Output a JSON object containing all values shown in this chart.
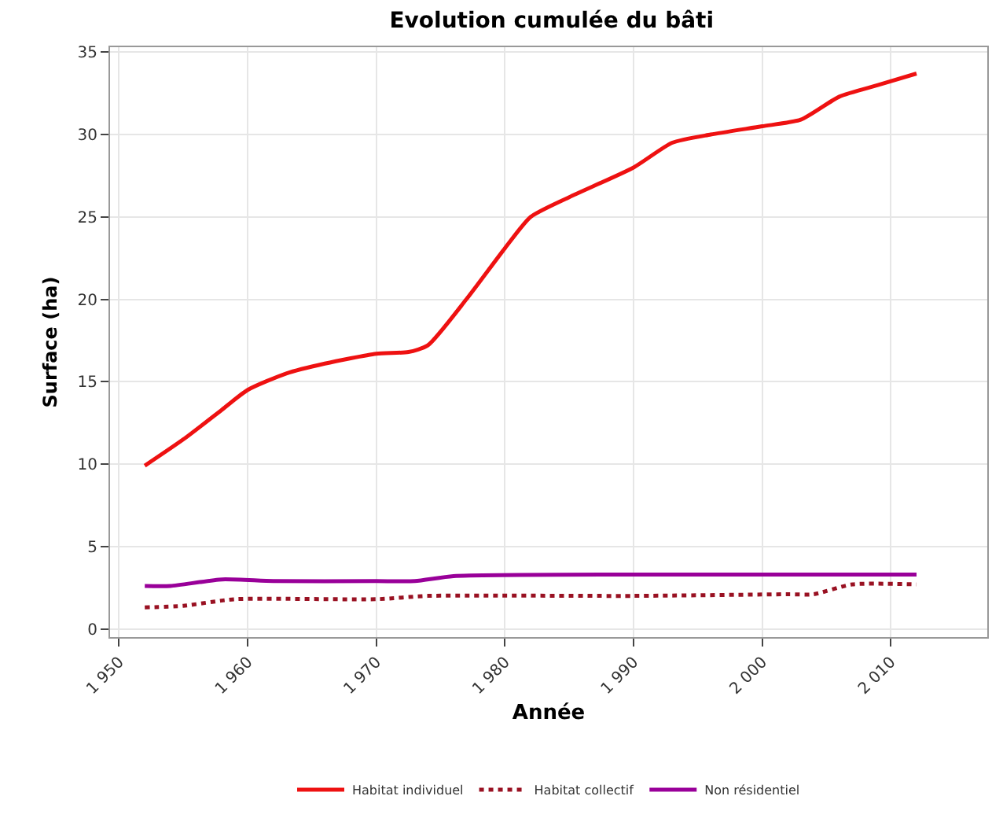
{
  "chart_data": {
    "type": "line",
    "title": "Evolution cumulée du bâti",
    "xlabel": "Année",
    "ylabel": "Surface (ha)",
    "xlim": [
      1949.3,
      2017.5
    ],
    "xticks": [
      {
        "value": 1950,
        "label": "1 950"
      },
      {
        "value": 1960,
        "label": "1 960"
      },
      {
        "value": 1970,
        "label": "1 970"
      },
      {
        "value": 1980,
        "label": "1 980"
      },
      {
        "value": 1990,
        "label": "1 990"
      },
      {
        "value": 2000,
        "label": "2 000"
      },
      {
        "value": 2010,
        "label": "2 010"
      }
    ],
    "ylim": [
      -0.5,
      35.3
    ],
    "yticks": [
      0,
      5,
      10,
      15,
      20,
      25,
      30,
      35
    ],
    "grid": true,
    "legend": "bottom",
    "marker": "none",
    "series": [
      {
        "name": "Habitat individuel",
        "color": "#ee1111",
        "line_style": "solid",
        "x": [
          1952,
          1955,
          1958,
          1960,
          1963,
          1966,
          1970,
          1972.5,
          1974,
          1977,
          1980,
          1982,
          1985,
          1990,
          1993,
          1996,
          2000,
          2003,
          2006,
          2009,
          2012
        ],
        "values": [
          9.9,
          11.5,
          13.3,
          14.5,
          15.5,
          16.1,
          16.7,
          16.8,
          17.2,
          20,
          23.1,
          25,
          26.2,
          28,
          29.5,
          30,
          30.5,
          30.9,
          32.3,
          33,
          33.7
        ]
      },
      {
        "name": "Habitat collectif",
        "color": "#991122",
        "line_style": "dotted",
        "x": [
          1952,
          1955,
          1959,
          1970,
          1974,
          1990,
          2002,
          2004,
          2007,
          2012
        ],
        "values": [
          1.3,
          1.4,
          1.8,
          1.8,
          2,
          2,
          2.1,
          2.1,
          2.7,
          2.7
        ]
      },
      {
        "name": "Non résidentiel",
        "color": "#990099",
        "line_style": "solid",
        "x": [
          1952,
          1954,
          1958,
          1962,
          1970,
          1973,
          1976,
          1990,
          2012
        ],
        "values": [
          2.6,
          2.6,
          3,
          2.9,
          2.9,
          2.9,
          3.2,
          3.3,
          3.3
        ]
      }
    ]
  }
}
